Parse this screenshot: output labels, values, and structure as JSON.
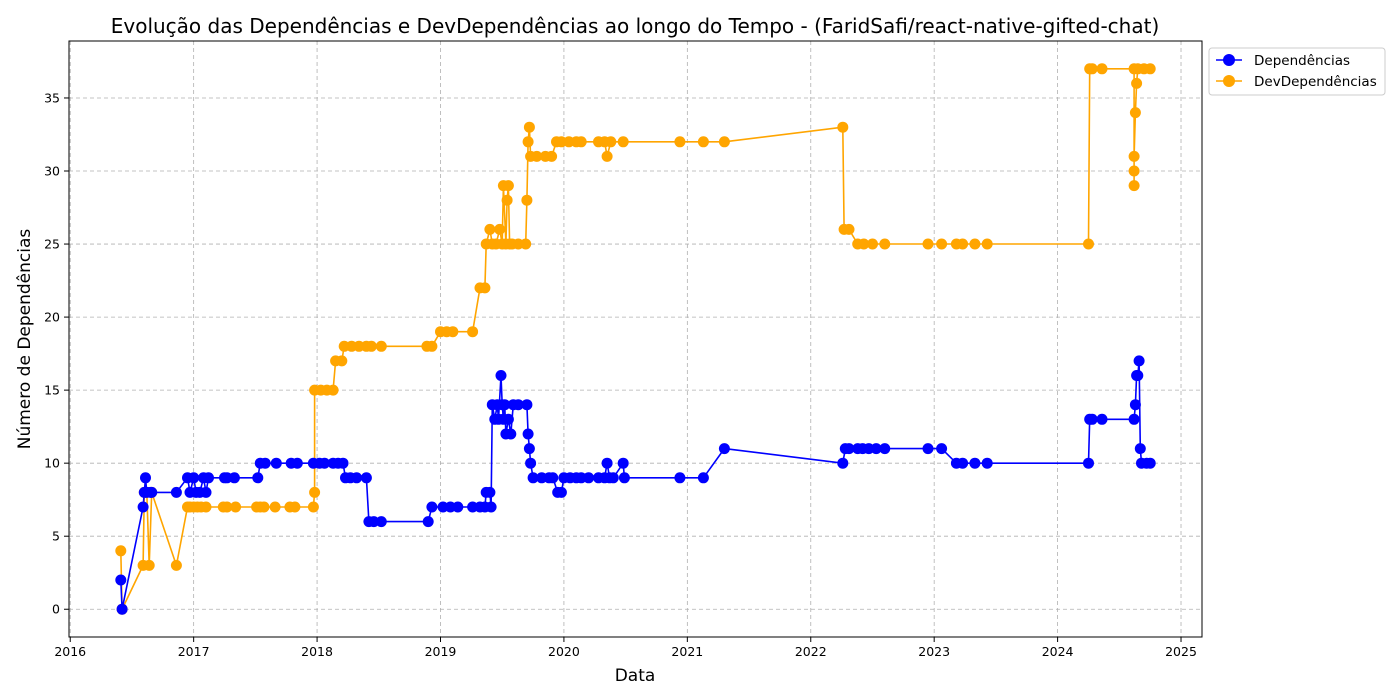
{
  "chart_data": {
    "type": "line",
    "title": "Evolução das Dependências e DevDependências ao longo do Tempo - (FaridSafi/react-native-gifted-chat)",
    "xlabel": "Data",
    "ylabel": "Número de Dependências",
    "x_ticks": [
      "2016",
      "2017",
      "2018",
      "2019",
      "2020",
      "2021",
      "2022",
      "2023",
      "2024",
      "2025"
    ],
    "y_ticks": [
      "0",
      "5",
      "10",
      "15",
      "20",
      "25",
      "30",
      "35"
    ],
    "xlim": [
      2015.99,
      2025.17
    ],
    "ylim": [
      -1.9,
      38.9
    ],
    "grid": true,
    "legend_position": "upper right, outside plot",
    "series": [
      {
        "name": "Dependências",
        "color": "#0000ff",
        "points": [
          [
            2016.41,
            2
          ],
          [
            2016.42,
            0
          ],
          [
            2016.59,
            7
          ],
          [
            2016.6,
            8
          ],
          [
            2016.61,
            9
          ],
          [
            2016.62,
            8
          ],
          [
            2016.65,
            8
          ],
          [
            2016.66,
            8
          ],
          [
            2016.86,
            8
          ],
          [
            2016.95,
            9
          ],
          [
            2016.97,
            8
          ],
          [
            2017.0,
            9
          ],
          [
            2017.02,
            8
          ],
          [
            2017.05,
            8
          ],
          [
            2017.08,
            9
          ],
          [
            2017.1,
            8
          ],
          [
            2017.12,
            9
          ],
          [
            2017.25,
            9
          ],
          [
            2017.27,
            9
          ],
          [
            2017.33,
            9
          ],
          [
            2017.52,
            9
          ],
          [
            2017.54,
            10
          ],
          [
            2017.58,
            10
          ],
          [
            2017.67,
            10
          ],
          [
            2017.79,
            10
          ],
          [
            2017.84,
            10
          ],
          [
            2017.97,
            10
          ],
          [
            2018.02,
            10
          ],
          [
            2018.06,
            10
          ],
          [
            2018.13,
            10
          ],
          [
            2018.17,
            10
          ],
          [
            2018.21,
            10
          ],
          [
            2018.23,
            9
          ],
          [
            2018.27,
            9
          ],
          [
            2018.32,
            9
          ],
          [
            2018.4,
            9
          ],
          [
            2018.42,
            6
          ],
          [
            2018.46,
            6
          ],
          [
            2018.52,
            6
          ],
          [
            2018.9,
            6
          ],
          [
            2018.93,
            7
          ],
          [
            2019.02,
            7
          ],
          [
            2019.08,
            7
          ],
          [
            2019.14,
            7
          ],
          [
            2019.26,
            7
          ],
          [
            2019.32,
            7
          ],
          [
            2019.36,
            7
          ],
          [
            2019.37,
            8
          ],
          [
            2019.4,
            8
          ],
          [
            2019.41,
            7
          ],
          [
            2019.42,
            14
          ],
          [
            2019.44,
            13
          ],
          [
            2019.46,
            14
          ],
          [
            2019.47,
            13
          ],
          [
            2019.49,
            16
          ],
          [
            2019.5,
            14
          ],
          [
            2019.51,
            13
          ],
          [
            2019.52,
            14
          ],
          [
            2019.53,
            12
          ],
          [
            2019.55,
            13
          ],
          [
            2019.57,
            12
          ],
          [
            2019.59,
            14
          ],
          [
            2019.63,
            14
          ],
          [
            2019.7,
            14
          ],
          [
            2019.71,
            12
          ],
          [
            2019.72,
            11
          ],
          [
            2019.73,
            10
          ],
          [
            2019.75,
            9
          ],
          [
            2019.82,
            9
          ],
          [
            2019.88,
            9
          ],
          [
            2019.91,
            9
          ],
          [
            2019.95,
            8
          ],
          [
            2019.98,
            8
          ],
          [
            2020.0,
            9
          ],
          [
            2020.05,
            9
          ],
          [
            2020.1,
            9
          ],
          [
            2020.14,
            9
          ],
          [
            2020.2,
            9
          ],
          [
            2020.28,
            9
          ],
          [
            2020.33,
            9
          ],
          [
            2020.35,
            10
          ],
          [
            2020.37,
            9
          ],
          [
            2020.4,
            9
          ],
          [
            2020.48,
            10
          ],
          [
            2020.49,
            9
          ],
          [
            2020.94,
            9
          ],
          [
            2021.13,
            9
          ],
          [
            2021.3,
            11
          ],
          [
            2022.26,
            10
          ],
          [
            2022.28,
            11
          ],
          [
            2022.31,
            11
          ],
          [
            2022.38,
            11
          ],
          [
            2022.42,
            11
          ],
          [
            2022.47,
            11
          ],
          [
            2022.53,
            11
          ],
          [
            2022.6,
            11
          ],
          [
            2022.95,
            11
          ],
          [
            2023.06,
            11
          ],
          [
            2023.18,
            10
          ],
          [
            2023.23,
            10
          ],
          [
            2023.33,
            10
          ],
          [
            2023.43,
            10
          ],
          [
            2024.25,
            10
          ],
          [
            2024.26,
            13
          ],
          [
            2024.28,
            13
          ],
          [
            2024.36,
            13
          ],
          [
            2024.62,
            13
          ],
          [
            2024.63,
            14
          ],
          [
            2024.64,
            16
          ],
          [
            2024.65,
            16
          ],
          [
            2024.66,
            17
          ],
          [
            2024.67,
            11
          ],
          [
            2024.68,
            10
          ],
          [
            2024.72,
            10
          ],
          [
            2024.75,
            10
          ]
        ]
      },
      {
        "name": "DevDependências",
        "color": "#ffa500",
        "points": [
          [
            2016.41,
            4
          ],
          [
            2016.42,
            0
          ],
          [
            2016.59,
            3
          ],
          [
            2016.6,
            8
          ],
          [
            2016.61,
            8
          ],
          [
            2016.62,
            8
          ],
          [
            2016.64,
            3
          ],
          [
            2016.66,
            8
          ],
          [
            2016.86,
            3
          ],
          [
            2016.95,
            7
          ],
          [
            2016.97,
            7
          ],
          [
            2017.0,
            7
          ],
          [
            2017.03,
            7
          ],
          [
            2017.06,
            7
          ],
          [
            2017.1,
            7
          ],
          [
            2017.24,
            7
          ],
          [
            2017.27,
            7
          ],
          [
            2017.34,
            7
          ],
          [
            2017.51,
            7
          ],
          [
            2017.54,
            7
          ],
          [
            2017.57,
            7
          ],
          [
            2017.66,
            7
          ],
          [
            2017.78,
            7
          ],
          [
            2017.82,
            7
          ],
          [
            2017.97,
            7
          ],
          [
            2017.98,
            8
          ],
          [
            2017.98,
            15
          ],
          [
            2018.03,
            15
          ],
          [
            2018.08,
            15
          ],
          [
            2018.13,
            15
          ],
          [
            2018.15,
            17
          ],
          [
            2018.2,
            17
          ],
          [
            2018.22,
            18
          ],
          [
            2018.28,
            18
          ],
          [
            2018.34,
            18
          ],
          [
            2018.4,
            18
          ],
          [
            2018.44,
            18
          ],
          [
            2018.52,
            18
          ],
          [
            2018.89,
            18
          ],
          [
            2018.93,
            18
          ],
          [
            2019.0,
            19
          ],
          [
            2019.05,
            19
          ],
          [
            2019.1,
            19
          ],
          [
            2019.26,
            19
          ],
          [
            2019.32,
            22
          ],
          [
            2019.36,
            22
          ],
          [
            2019.37,
            25
          ],
          [
            2019.4,
            26
          ],
          [
            2019.42,
            25
          ],
          [
            2019.45,
            25
          ],
          [
            2019.48,
            26
          ],
          [
            2019.5,
            25
          ],
          [
            2019.51,
            29
          ],
          [
            2019.53,
            25
          ],
          [
            2019.54,
            28
          ],
          [
            2019.55,
            29
          ],
          [
            2019.56,
            25
          ],
          [
            2019.58,
            25
          ],
          [
            2019.63,
            25
          ],
          [
            2019.69,
            25
          ],
          [
            2019.7,
            28
          ],
          [
            2019.71,
            32
          ],
          [
            2019.72,
            33
          ],
          [
            2019.73,
            31
          ],
          [
            2019.78,
            31
          ],
          [
            2019.85,
            31
          ],
          [
            2019.9,
            31
          ],
          [
            2019.94,
            32
          ],
          [
            2019.98,
            32
          ],
          [
            2020.04,
            32
          ],
          [
            2020.1,
            32
          ],
          [
            2020.14,
            32
          ],
          [
            2020.28,
            32
          ],
          [
            2020.33,
            32
          ],
          [
            2020.35,
            31
          ],
          [
            2020.38,
            32
          ],
          [
            2020.48,
            32
          ],
          [
            2020.94,
            32
          ],
          [
            2021.13,
            32
          ],
          [
            2021.3,
            32
          ],
          [
            2022.26,
            33
          ],
          [
            2022.27,
            26
          ],
          [
            2022.31,
            26
          ],
          [
            2022.38,
            25
          ],
          [
            2022.43,
            25
          ],
          [
            2022.5,
            25
          ],
          [
            2022.6,
            25
          ],
          [
            2022.95,
            25
          ],
          [
            2023.06,
            25
          ],
          [
            2023.18,
            25
          ],
          [
            2023.23,
            25
          ],
          [
            2023.33,
            25
          ],
          [
            2023.43,
            25
          ],
          [
            2024.25,
            25
          ],
          [
            2024.26,
            37
          ],
          [
            2024.28,
            37
          ],
          [
            2024.36,
            37
          ],
          [
            2024.62,
            37
          ],
          [
            2024.62,
            29
          ],
          [
            2024.62,
            30
          ],
          [
            2024.62,
            31
          ],
          [
            2024.63,
            34
          ],
          [
            2024.64,
            36
          ],
          [
            2024.65,
            37
          ],
          [
            2024.7,
            37
          ],
          [
            2024.75,
            37
          ]
        ]
      }
    ]
  }
}
